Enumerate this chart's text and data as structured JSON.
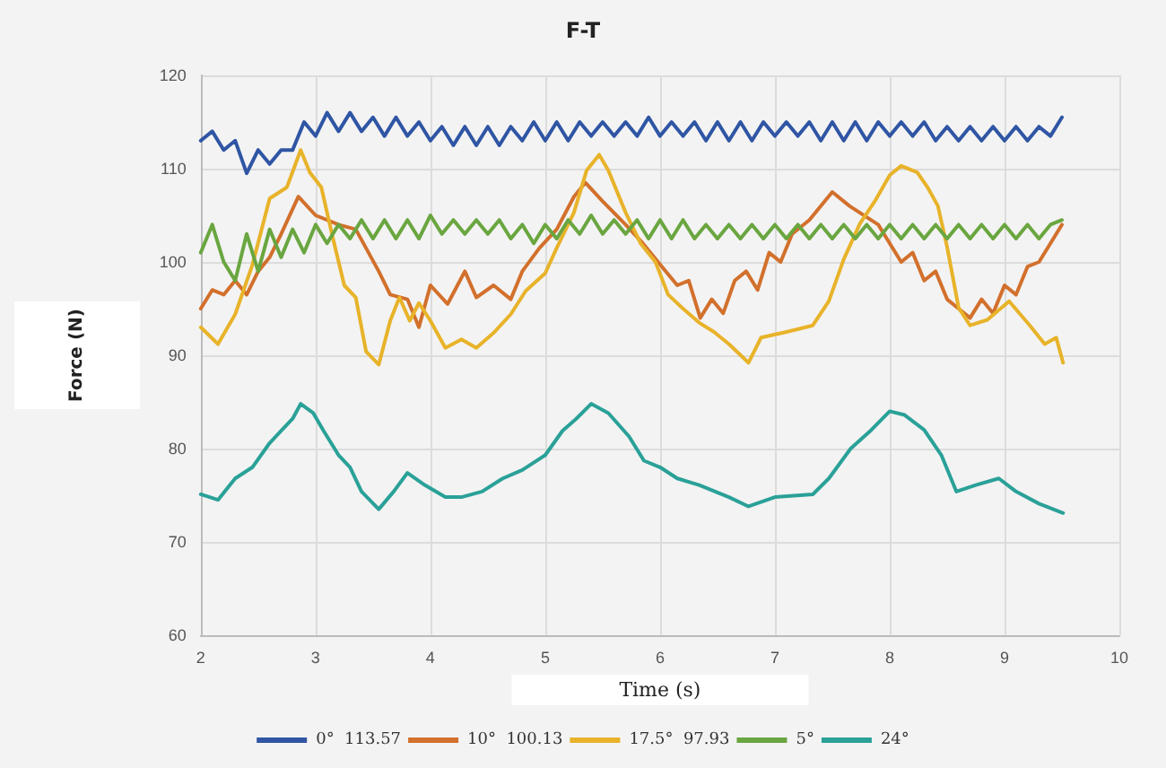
{
  "chart_data": {
    "type": "line",
    "title": "F-T",
    "xlabel": "Time (s)",
    "ylabel": "Force (N)",
    "xlim": [
      2,
      10
    ],
    "xticks": [
      2,
      3,
      4,
      5,
      6,
      7,
      8,
      9,
      10
    ],
    "ylim": [
      60,
      120
    ],
    "yticks": [
      60,
      70,
      80,
      90,
      100,
      110,
      120
    ],
    "grid": true,
    "legend": "bottom",
    "marker": "none",
    "line_style": "solid",
    "series": [
      {
        "name": "0°  113.57",
        "color": "#2f55a4",
        "x": [
          2.0,
          2.1,
          2.2,
          2.3,
          2.4,
          2.5,
          2.6,
          2.7,
          2.8,
          2.9,
          3.0,
          3.1,
          3.2,
          3.3,
          3.4,
          3.5,
          3.6,
          3.7,
          3.8,
          3.9,
          4.0,
          4.1,
          4.2,
          4.3,
          4.4,
          4.5,
          4.6,
          4.7,
          4.8,
          4.9,
          5.0,
          5.1,
          5.2,
          5.3,
          5.4,
          5.5,
          5.6,
          5.7,
          5.8,
          5.9,
          6.0,
          6.1,
          6.2,
          6.3,
          6.4,
          6.5,
          6.6,
          6.7,
          6.8,
          6.9,
          7.0,
          7.1,
          7.2,
          7.3,
          7.4,
          7.5,
          7.6,
          7.7,
          7.8,
          7.9,
          8.0,
          8.1,
          8.2,
          8.3,
          8.4,
          8.5,
          8.6,
          8.7,
          8.8,
          8.9,
          9.0,
          9.1,
          9.2,
          9.3,
          9.4,
          9.5
        ],
        "values": [
          113,
          114,
          112,
          113,
          109.5,
          112,
          110.5,
          112,
          112,
          115,
          113.5,
          116,
          114,
          116,
          114,
          115.5,
          113.5,
          115.5,
          113.5,
          115,
          113,
          114.5,
          112.5,
          114.5,
          112.5,
          114.5,
          112.5,
          114.5,
          113,
          115,
          113,
          115,
          113,
          115,
          113.5,
          115,
          113.5,
          115,
          113.5,
          115.5,
          113.5,
          115,
          113.5,
          115,
          113,
          115,
          113,
          115,
          113,
          115,
          113.5,
          115,
          113.5,
          115,
          113,
          115,
          113,
          115,
          113,
          115,
          113.5,
          115,
          113.5,
          115,
          113,
          114.5,
          113,
          114.5,
          113,
          114.5,
          113,
          114.5,
          113,
          114.5,
          113.5,
          115.5
        ]
      },
      {
        "name": "10°  100.13",
        "color": "#d2702c",
        "x": [
          2.0,
          2.1,
          2.2,
          2.3,
          2.4,
          2.5,
          2.6,
          2.7,
          2.85,
          3.0,
          3.2,
          3.35,
          3.55,
          3.65,
          3.8,
          3.9,
          4.0,
          4.15,
          4.3,
          4.4,
          4.55,
          4.7,
          4.8,
          4.95,
          5.1,
          5.25,
          5.35,
          5.5,
          5.7,
          5.85,
          6.05,
          6.15,
          6.25,
          6.35,
          6.45,
          6.55,
          6.65,
          6.75,
          6.85,
          6.95,
          7.05,
          7.15,
          7.3,
          7.5,
          7.65,
          7.9,
          8.0,
          8.1,
          8.2,
          8.3,
          8.4,
          8.5,
          8.6,
          8.7,
          8.8,
          8.9,
          9.0,
          9.1,
          9.2,
          9.3,
          9.4,
          9.5
        ],
        "values": [
          95,
          97,
          96.5,
          98,
          96.5,
          99,
          100.5,
          103,
          107,
          105,
          104,
          103.5,
          99,
          96.5,
          96,
          93,
          97.5,
          95.5,
          99,
          96.2,
          97.5,
          96,
          99,
          101.5,
          103.5,
          107,
          108.5,
          106.5,
          104,
          102,
          99,
          97.5,
          98,
          94,
          96,
          94.5,
          98,
          99,
          97,
          101,
          100,
          103,
          104.5,
          107.5,
          106,
          104,
          102,
          100,
          101,
          98,
          99,
          96,
          95,
          94,
          96,
          94.5,
          97.5,
          96.5,
          99.5,
          100,
          102,
          104
        ]
      },
      {
        "name": "17.5°  97.93",
        "color": "#e8b32a",
        "x": [
          2.0,
          2.15,
          2.3,
          2.45,
          2.6,
          2.75,
          2.87,
          2.95,
          3.05,
          3.15,
          3.25,
          3.35,
          3.44,
          3.55,
          3.65,
          3.73,
          3.82,
          3.9,
          4.0,
          4.13,
          4.27,
          4.4,
          4.55,
          4.7,
          4.83,
          5.0,
          5.1,
          5.25,
          5.36,
          5.47,
          5.55,
          5.7,
          5.83,
          5.96,
          6.07,
          6.2,
          6.34,
          6.47,
          6.6,
          6.77,
          6.88,
          7.1,
          7.33,
          7.47,
          7.6,
          7.74,
          7.88,
          8.0,
          8.1,
          8.24,
          8.33,
          8.42,
          8.5,
          8.6,
          8.7,
          8.85,
          9.04,
          9.22,
          9.35,
          9.45,
          9.51
        ],
        "values": [
          93,
          91.2,
          94.4,
          99.7,
          106.8,
          108,
          112,
          109.6,
          108,
          102.6,
          97.5,
          96.2,
          90.4,
          89,
          93.7,
          96.2,
          93.7,
          95.6,
          93.7,
          90.8,
          91.7,
          90.8,
          92.4,
          94.4,
          96.9,
          98.8,
          101.5,
          105.3,
          109.8,
          111.5,
          109.8,
          105.3,
          102,
          100,
          96.5,
          95,
          93.5,
          92.5,
          91.2,
          89.2,
          91.9,
          92.5,
          93.2,
          95.8,
          100.3,
          104.1,
          106.7,
          109.3,
          110.3,
          109.6,
          108,
          106,
          101.6,
          95.1,
          93.2,
          93.8,
          95.8,
          93.2,
          91.2,
          91.9,
          89.2
        ]
      },
      {
        "name": "5°",
        "color": "#6aa640",
        "x": [
          2.0,
          2.1,
          2.2,
          2.3,
          2.4,
          2.5,
          2.6,
          2.7,
          2.8,
          2.9,
          3.0,
          3.1,
          3.2,
          3.3,
          3.4,
          3.5,
          3.6,
          3.7,
          3.8,
          3.9,
          4.0,
          4.1,
          4.2,
          4.3,
          4.4,
          4.5,
          4.6,
          4.7,
          4.8,
          4.9,
          5.0,
          5.1,
          5.2,
          5.3,
          5.4,
          5.5,
          5.6,
          5.7,
          5.8,
          5.9,
          6.0,
          6.1,
          6.2,
          6.3,
          6.4,
          6.5,
          6.6,
          6.7,
          6.8,
          6.9,
          7.0,
          7.1,
          7.2,
          7.3,
          7.4,
          7.5,
          7.6,
          7.7,
          7.8,
          7.9,
          8.0,
          8.1,
          8.2,
          8.3,
          8.4,
          8.5,
          8.6,
          8.7,
          8.8,
          8.9,
          9.0,
          9.1,
          9.2,
          9.3,
          9.4,
          9.5
        ],
        "values": [
          101,
          104,
          100,
          98,
          103,
          99,
          103.5,
          100.5,
          103.5,
          101,
          104,
          102,
          104,
          102.5,
          104.5,
          102.5,
          104.5,
          102.5,
          104.5,
          102.5,
          105,
          103,
          104.5,
          103,
          104.5,
          103,
          104.5,
          102.5,
          104,
          102,
          104,
          102.5,
          104.5,
          103,
          105,
          103,
          104.5,
          103,
          104.5,
          102.5,
          104.5,
          102.5,
          104.5,
          102.5,
          104,
          102.5,
          104,
          102.5,
          104,
          102.5,
          104,
          102.5,
          104,
          102.5,
          104,
          102.5,
          104,
          102.5,
          104,
          102.5,
          104,
          102.5,
          104,
          102.5,
          104,
          102.5,
          104,
          102.5,
          104,
          102.5,
          104,
          102.5,
          104,
          102.5,
          104,
          104.5
        ]
      },
      {
        "name": "24°",
        "color": "#2aa198",
        "x": [
          2.0,
          2.15,
          2.3,
          2.45,
          2.6,
          2.7,
          2.8,
          2.87,
          2.98,
          3.07,
          3.2,
          3.3,
          3.4,
          3.55,
          3.68,
          3.8,
          3.95,
          4.13,
          4.27,
          4.45,
          4.63,
          4.8,
          5.0,
          5.15,
          5.27,
          5.4,
          5.55,
          5.73,
          5.86,
          6.0,
          6.15,
          6.34,
          6.6,
          6.77,
          7.0,
          7.33,
          7.47,
          7.66,
          7.84,
          8.0,
          8.13,
          8.3,
          8.45,
          8.58,
          8.75,
          8.95,
          9.1,
          9.3,
          9.51
        ],
        "values": [
          75.1,
          74.5,
          76.8,
          78,
          80.6,
          81.9,
          83.2,
          84.8,
          83.8,
          81.9,
          79.3,
          78,
          75.4,
          73.5,
          75.4,
          77.4,
          76.1,
          74.8,
          74.8,
          75.4,
          76.8,
          77.7,
          79.3,
          81.9,
          83.2,
          84.8,
          83.8,
          81.3,
          78.7,
          78,
          76.8,
          76.1,
          74.8,
          73.8,
          74.8,
          75.1,
          76.8,
          80,
          82,
          84,
          83.6,
          82,
          79.3,
          75.4,
          76.1,
          76.8,
          75.4,
          74.1,
          73.1
        ]
      }
    ]
  }
}
